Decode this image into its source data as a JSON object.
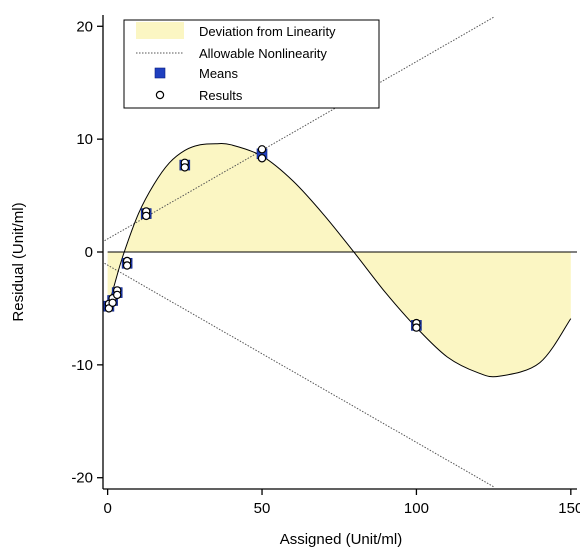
{
  "chart_data": {
    "type": "scatter",
    "xlabel": "Assigned (Unit/ml)",
    "ylabel": "Residual (Unit/ml)",
    "xlim": [
      -1.5,
      152
    ],
    "ylim": [
      -21,
      21
    ],
    "xticks": [
      0,
      50,
      100,
      150
    ],
    "xtick_labels": [
      "0",
      "50",
      "100",
      "150"
    ],
    "yticks": [
      -20,
      -10,
      0,
      10,
      20
    ],
    "ytick_labels": [
      "-20",
      "-10",
      "0",
      "10",
      "20"
    ],
    "grid": false,
    "legend_position": "top",
    "legend": [
      {
        "label": "Deviation from Linearity",
        "symbol": "band"
      },
      {
        "label": "Allowable Nonlinearity",
        "symbol": "dotted-line"
      },
      {
        "label": "Means",
        "symbol": "filled-square"
      },
      {
        "label": "Results",
        "symbol": "open-circle"
      }
    ],
    "series": [
      {
        "name": "Deviation from Linearity",
        "kind": "cubic-curve",
        "x": [
          0,
          2,
          5,
          10,
          15,
          20,
          25,
          30,
          35,
          40,
          50,
          60,
          70,
          80,
          90,
          100,
          110,
          120,
          127,
          140,
          150
        ],
        "y": [
          -5.1,
          -3.1,
          -0.3,
          3.4,
          6.0,
          7.9,
          9.0,
          9.5,
          9.6,
          9.5,
          8.5,
          6.3,
          3.3,
          -0.1,
          -3.6,
          -6.7,
          -9.3,
          -10.7,
          -11.0,
          -9.8,
          -5.9
        ],
        "color": "#fbf6c3",
        "line_color": "#000000"
      },
      {
        "name": "Allowable Nonlinearity",
        "kind": "dotted-lines",
        "x": [
          -1,
          125
        ],
        "upper": [
          1.0,
          20.8
        ],
        "lower": [
          -1.0,
          -20.8
        ],
        "color": "#555555"
      },
      {
        "name": "Means",
        "kind": "filled-square",
        "x": [
          0.4,
          1.6,
          3.1,
          6.3,
          12.5,
          25,
          50,
          100
        ],
        "y": [
          -4.8,
          -4.3,
          -3.6,
          -1.0,
          3.4,
          7.7,
          8.7,
          -6.5
        ],
        "color": "#1f3fbf"
      },
      {
        "name": "Results",
        "kind": "open-circle",
        "x": [
          0.4,
          0.4,
          1.6,
          1.6,
          3.1,
          3.1,
          6.3,
          6.3,
          12.5,
          12.5,
          25,
          25,
          50,
          50,
          100,
          100
        ],
        "y": [
          -4.6,
          -5.0,
          -4.1,
          -4.5,
          -3.4,
          -3.8,
          -0.8,
          -1.2,
          3.6,
          3.2,
          7.9,
          7.5,
          9.1,
          8.3,
          -6.3,
          -6.7
        ],
        "color": "#000000"
      }
    ]
  }
}
